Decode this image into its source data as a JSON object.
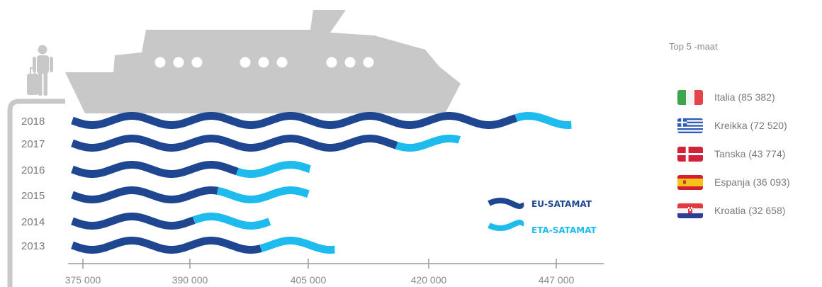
{
  "chart_data": {
    "type": "bar",
    "categories": [
      "2018",
      "2017",
      "2016",
      "2015",
      "2014",
      "2013"
    ],
    "series": [
      {
        "name": "EU-SATAMAT",
        "values": [
          438500,
          416000,
          396000,
          393500,
          390500,
          399000
        ],
        "color": "#1f4690"
      },
      {
        "name": "ETA-SATAMAT",
        "values": [
          11700,
          10500,
          9200,
          11500,
          9600,
          9300
        ],
        "color": "#1ebbef"
      }
    ],
    "x_ticks": [
      {
        "value": 375000,
        "label": "375 000"
      },
      {
        "value": 390000,
        "label": "390 000"
      },
      {
        "value": 405000,
        "label": "405 000"
      },
      {
        "value": 420000,
        "label": "420 000"
      },
      {
        "value": 447000,
        "label": "447 000"
      }
    ],
    "stacked": true,
    "xlabel": "",
    "ylabel": "",
    "legend_position": "right",
    "grid": false
  },
  "top5": {
    "title": "Top 5 -maat",
    "countries": [
      {
        "label": "Italia (85 382)",
        "flag": "italy-flag-icon"
      },
      {
        "label": "Kreikka (72 520)",
        "flag": "greece-flag-icon"
      },
      {
        "label": "Tanska (43 774)",
        "flag": "denmark-flag-icon"
      },
      {
        "label": "Espanja (36 093)",
        "flag": "spain-flag-icon"
      },
      {
        "label": "Kroatia (32 658)",
        "flag": "croatia-flag-icon"
      }
    ]
  },
  "colors": {
    "eu": "#1f4690",
    "eta": "#1ebbef",
    "ship": "#c8c8c8",
    "pier": "#c8c8c8",
    "axis": "#9a9a9a"
  },
  "icons": {
    "ship": "ferry-icon",
    "passenger": "traveler-with-luggage-icon"
  }
}
